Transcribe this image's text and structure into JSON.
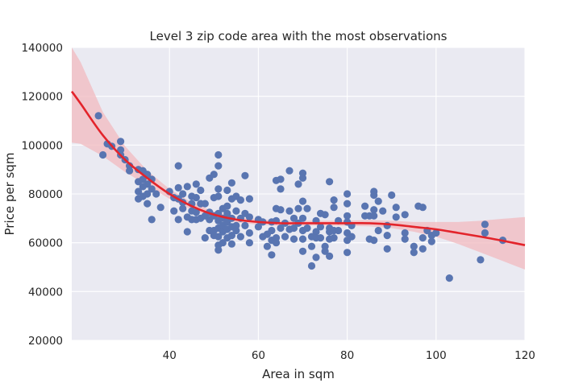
{
  "chart_data": {
    "type": "scatter",
    "title": "Level 3 zip code area with the most observations",
    "xlabel": "Area in sqm",
    "ylabel": "Price per sqm",
    "xlim": [
      18,
      120
    ],
    "ylim": [
      20000,
      140000
    ],
    "x_ticks": [
      40,
      60,
      80,
      100,
      120
    ],
    "y_ticks": [
      20000,
      40000,
      60000,
      80000,
      100000,
      120000,
      140000
    ],
    "grid": true,
    "background_color": "#eaeaf2",
    "point_color": "#5975b1",
    "line_color": "#e3242b",
    "band_color": "#f1b9bf",
    "series": [
      {
        "kind": "points",
        "points": [
          [
            24,
            112000
          ],
          [
            25,
            96000
          ],
          [
            26,
            100500
          ],
          [
            27,
            99500
          ],
          [
            29,
            101500
          ],
          [
            29,
            98000
          ],
          [
            29,
            96000
          ],
          [
            30,
            94000
          ],
          [
            31,
            89500
          ],
          [
            31,
            91500
          ],
          [
            33,
            90000
          ],
          [
            33,
            85000
          ],
          [
            33,
            81000
          ],
          [
            33,
            78000
          ],
          [
            34,
            89500
          ],
          [
            34,
            86000
          ],
          [
            34,
            83000
          ],
          [
            34,
            79000
          ],
          [
            35,
            88000
          ],
          [
            35,
            84000
          ],
          [
            35,
            80000
          ],
          [
            35,
            76000
          ],
          [
            36,
            86000
          ],
          [
            36,
            82000
          ],
          [
            36,
            69500
          ],
          [
            37,
            80000
          ],
          [
            38,
            74500
          ],
          [
            40,
            81000
          ],
          [
            41,
            73000
          ],
          [
            41,
            78500
          ],
          [
            42,
            91500
          ],
          [
            42,
            82500
          ],
          [
            42,
            78000
          ],
          [
            42,
            69500
          ],
          [
            43,
            80000
          ],
          [
            43,
            76500
          ],
          [
            43,
            74000
          ],
          [
            44,
            83000
          ],
          [
            44,
            70500
          ],
          [
            44,
            64500
          ],
          [
            45,
            79000
          ],
          [
            45,
            76000
          ],
          [
            45,
            73000
          ],
          [
            45,
            69500
          ],
          [
            46,
            84000
          ],
          [
            46,
            78500
          ],
          [
            46,
            72500
          ],
          [
            46,
            69500
          ],
          [
            47,
            81500
          ],
          [
            47,
            76000
          ],
          [
            47,
            70000
          ],
          [
            48,
            76000
          ],
          [
            48,
            71000
          ],
          [
            48,
            62000
          ],
          [
            49,
            86500
          ],
          [
            49,
            72500
          ],
          [
            49,
            65000
          ],
          [
            49,
            69500
          ],
          [
            50,
            88000
          ],
          [
            50,
            78500
          ],
          [
            50,
            71000
          ],
          [
            50,
            65000
          ],
          [
            50,
            63000
          ],
          [
            51,
            96000
          ],
          [
            51,
            91500
          ],
          [
            51,
            82000
          ],
          [
            51,
            79000
          ],
          [
            51,
            72000
          ],
          [
            51,
            69000
          ],
          [
            51,
            66000
          ],
          [
            51,
            62500
          ],
          [
            51,
            59000
          ],
          [
            51,
            57000
          ],
          [
            52,
            74000
          ],
          [
            52,
            70000
          ],
          [
            52,
            67000
          ],
          [
            52,
            64500
          ],
          [
            52,
            60000
          ],
          [
            53,
            81500
          ],
          [
            53,
            75000
          ],
          [
            53,
            72000
          ],
          [
            53,
            68500
          ],
          [
            53,
            65500
          ],
          [
            53,
            62000
          ],
          [
            54,
            84500
          ],
          [
            54,
            78000
          ],
          [
            54,
            70000
          ],
          [
            54,
            66500
          ],
          [
            54,
            63000
          ],
          [
            54,
            59500
          ],
          [
            55,
            79000
          ],
          [
            55,
            73000
          ],
          [
            55,
            67000
          ],
          [
            55,
            65000
          ],
          [
            56,
            77500
          ],
          [
            56,
            70000
          ],
          [
            56,
            62500
          ],
          [
            57,
            87500
          ],
          [
            57,
            72000
          ],
          [
            57,
            67000
          ],
          [
            58,
            78000
          ],
          [
            58,
            70500
          ],
          [
            58,
            64000
          ],
          [
            58,
            60000
          ],
          [
            60,
            69500
          ],
          [
            60,
            66500
          ],
          [
            61,
            68500
          ],
          [
            61,
            62500
          ],
          [
            62,
            63500
          ],
          [
            62,
            58500
          ],
          [
            63,
            68500
          ],
          [
            63,
            65000
          ],
          [
            63,
            61000
          ],
          [
            63,
            55000
          ],
          [
            64,
            85500
          ],
          [
            64,
            74000
          ],
          [
            64,
            69000
          ],
          [
            64,
            62000
          ],
          [
            64,
            60000
          ],
          [
            65,
            86000
          ],
          [
            65,
            82000
          ],
          [
            65,
            73500
          ],
          [
            65,
            66000
          ],
          [
            66,
            68000
          ],
          [
            66,
            62500
          ],
          [
            67,
            89500
          ],
          [
            67,
            73000
          ],
          [
            67,
            65500
          ],
          [
            68,
            70000
          ],
          [
            68,
            66000
          ],
          [
            68,
            61500
          ],
          [
            69,
            84000
          ],
          [
            69,
            74000
          ],
          [
            69,
            68000
          ],
          [
            70,
            88500
          ],
          [
            70,
            86500
          ],
          [
            70,
            77000
          ],
          [
            70,
            70000
          ],
          [
            70,
            65000
          ],
          [
            70,
            61500
          ],
          [
            70,
            56500
          ],
          [
            71,
            74000
          ],
          [
            71,
            66000
          ],
          [
            72,
            62500
          ],
          [
            72,
            58500
          ],
          [
            72,
            50500
          ],
          [
            73,
            69000
          ],
          [
            73,
            64500
          ],
          [
            73,
            62000
          ],
          [
            73,
            54000
          ],
          [
            74,
            72000
          ],
          [
            74,
            66500
          ],
          [
            74,
            62000
          ],
          [
            75,
            71500
          ],
          [
            75,
            58500
          ],
          [
            75,
            56500
          ],
          [
            76,
            85000
          ],
          [
            76,
            66000
          ],
          [
            76,
            64500
          ],
          [
            76,
            61500
          ],
          [
            76,
            54500
          ],
          [
            77,
            77500
          ],
          [
            77,
            74500
          ],
          [
            77,
            65000
          ],
          [
            77,
            62000
          ],
          [
            78,
            69000
          ],
          [
            78,
            65000
          ],
          [
            80,
            80000
          ],
          [
            80,
            76000
          ],
          [
            80,
            71000
          ],
          [
            80,
            68500
          ],
          [
            80,
            64000
          ],
          [
            80,
            61000
          ],
          [
            80,
            56000
          ],
          [
            81,
            67000
          ],
          [
            81,
            62500
          ],
          [
            84,
            75000
          ],
          [
            84,
            71000
          ],
          [
            85,
            71000
          ],
          [
            85,
            61500
          ],
          [
            86,
            81000
          ],
          [
            86,
            79500
          ],
          [
            86,
            73500
          ],
          [
            86,
            71000
          ],
          [
            86,
            61000
          ],
          [
            87,
            77000
          ],
          [
            87,
            65000
          ],
          [
            88,
            73000
          ],
          [
            89,
            67000
          ],
          [
            89,
            63000
          ],
          [
            89,
            57500
          ],
          [
            90,
            79500
          ],
          [
            91,
            74500
          ],
          [
            91,
            70500
          ],
          [
            93,
            71500
          ],
          [
            93,
            64000
          ],
          [
            93,
            61500
          ],
          [
            95,
            58500
          ],
          [
            95,
            56000
          ],
          [
            96,
            75000
          ],
          [
            97,
            74500
          ],
          [
            97,
            62000
          ],
          [
            97,
            57500
          ],
          [
            98,
            65000
          ],
          [
            99,
            63000
          ],
          [
            99,
            60500
          ],
          [
            100,
            64000
          ],
          [
            103,
            45500
          ],
          [
            110,
            53000
          ],
          [
            111,
            67500
          ],
          [
            111,
            64000
          ],
          [
            115,
            61000
          ]
        ]
      },
      {
        "kind": "regression",
        "x": [
          18,
          20,
          25,
          30,
          35,
          40,
          45,
          50,
          55,
          60,
          65,
          70,
          75,
          80,
          85,
          90,
          95,
          100,
          105,
          110,
          115,
          120
        ],
        "y": [
          122000,
          117000,
          104000,
          94000,
          86500,
          80000,
          75000,
          71500,
          69500,
          68500,
          68000,
          68000,
          68000,
          68000,
          68000,
          67500,
          66500,
          65500,
          64000,
          62500,
          60800,
          59000
        ],
        "lower": [
          101000,
          100500,
          95500,
          89000,
          83500,
          78000,
          73500,
          70300,
          68400,
          67400,
          66900,
          67000,
          67000,
          66900,
          66700,
          66000,
          64500,
          62500,
          59500,
          56000,
          52500,
          49000
        ],
        "upper": [
          140000,
          134000,
          113500,
          99500,
          89500,
          82000,
          76500,
          72700,
          70600,
          69600,
          69100,
          69000,
          69000,
          69100,
          69300,
          69000,
          68500,
          68500,
          68500,
          69000,
          69800,
          70500
        ]
      }
    ]
  }
}
